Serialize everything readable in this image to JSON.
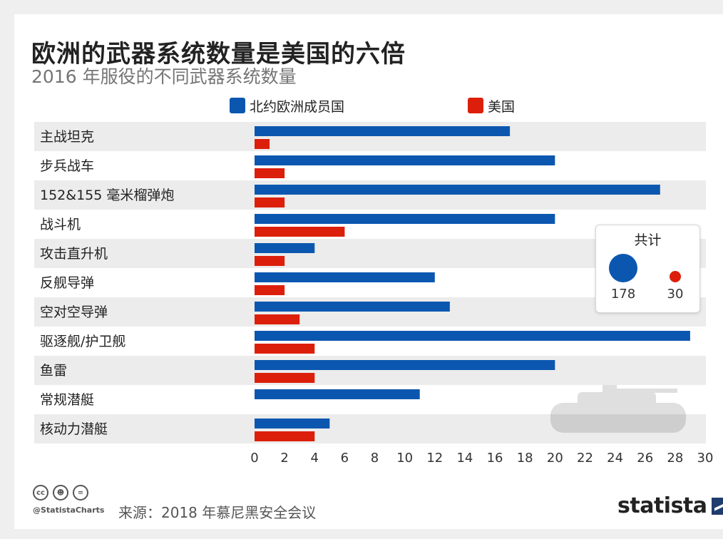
{
  "title": "欧洲的武器系统数量是美国的六倍",
  "subtitle": "2016 年服役的不同武器系统数量",
  "legend": [
    {
      "label": "北约欧洲成员国",
      "color": "#0b57b0"
    },
    {
      "label": "美国",
      "color": "#dc1f0b"
    }
  ],
  "chart_data": {
    "type": "bar",
    "orientation": "horizontal",
    "categories": [
      "主战坦克",
      "步兵战车",
      "152&155 毫米榴弹炮",
      "战斗机",
      "攻击直升机",
      "反舰导弹",
      "空对空导弹",
      "驱逐舰/护卫舰",
      "鱼雷",
      "常规潜艇",
      "核动力潜艇"
    ],
    "series": [
      {
        "name": "北约欧洲成员国",
        "color": "#0b57b0",
        "values": [
          17,
          20,
          27,
          20,
          4,
          12,
          13,
          29,
          20,
          11,
          5
        ]
      },
      {
        "name": "美国",
        "color": "#dc1f0b",
        "values": [
          1,
          2,
          2,
          6,
          2,
          2,
          3,
          4,
          4,
          0,
          4
        ]
      }
    ],
    "xlim": [
      0,
      30
    ],
    "xticks": [
      0,
      2,
      4,
      6,
      8,
      10,
      12,
      14,
      16,
      18,
      20,
      22,
      24,
      26,
      28,
      30
    ],
    "grid": false
  },
  "totals": {
    "title": "共计",
    "europe": {
      "value": "178",
      "color": "#0b57b0"
    },
    "us": {
      "value": "30",
      "color": "#dc1f0b"
    }
  },
  "footer": {
    "handle": "@StatistaCharts",
    "source": "来源：2018 年慕尼黑安全会议",
    "brand": "statista"
  },
  "icons": [
    "cc-license-icon",
    "attribution-icon",
    "no-derivatives-icon",
    "statista-logo-icon",
    "tank-watermark-icon"
  ]
}
